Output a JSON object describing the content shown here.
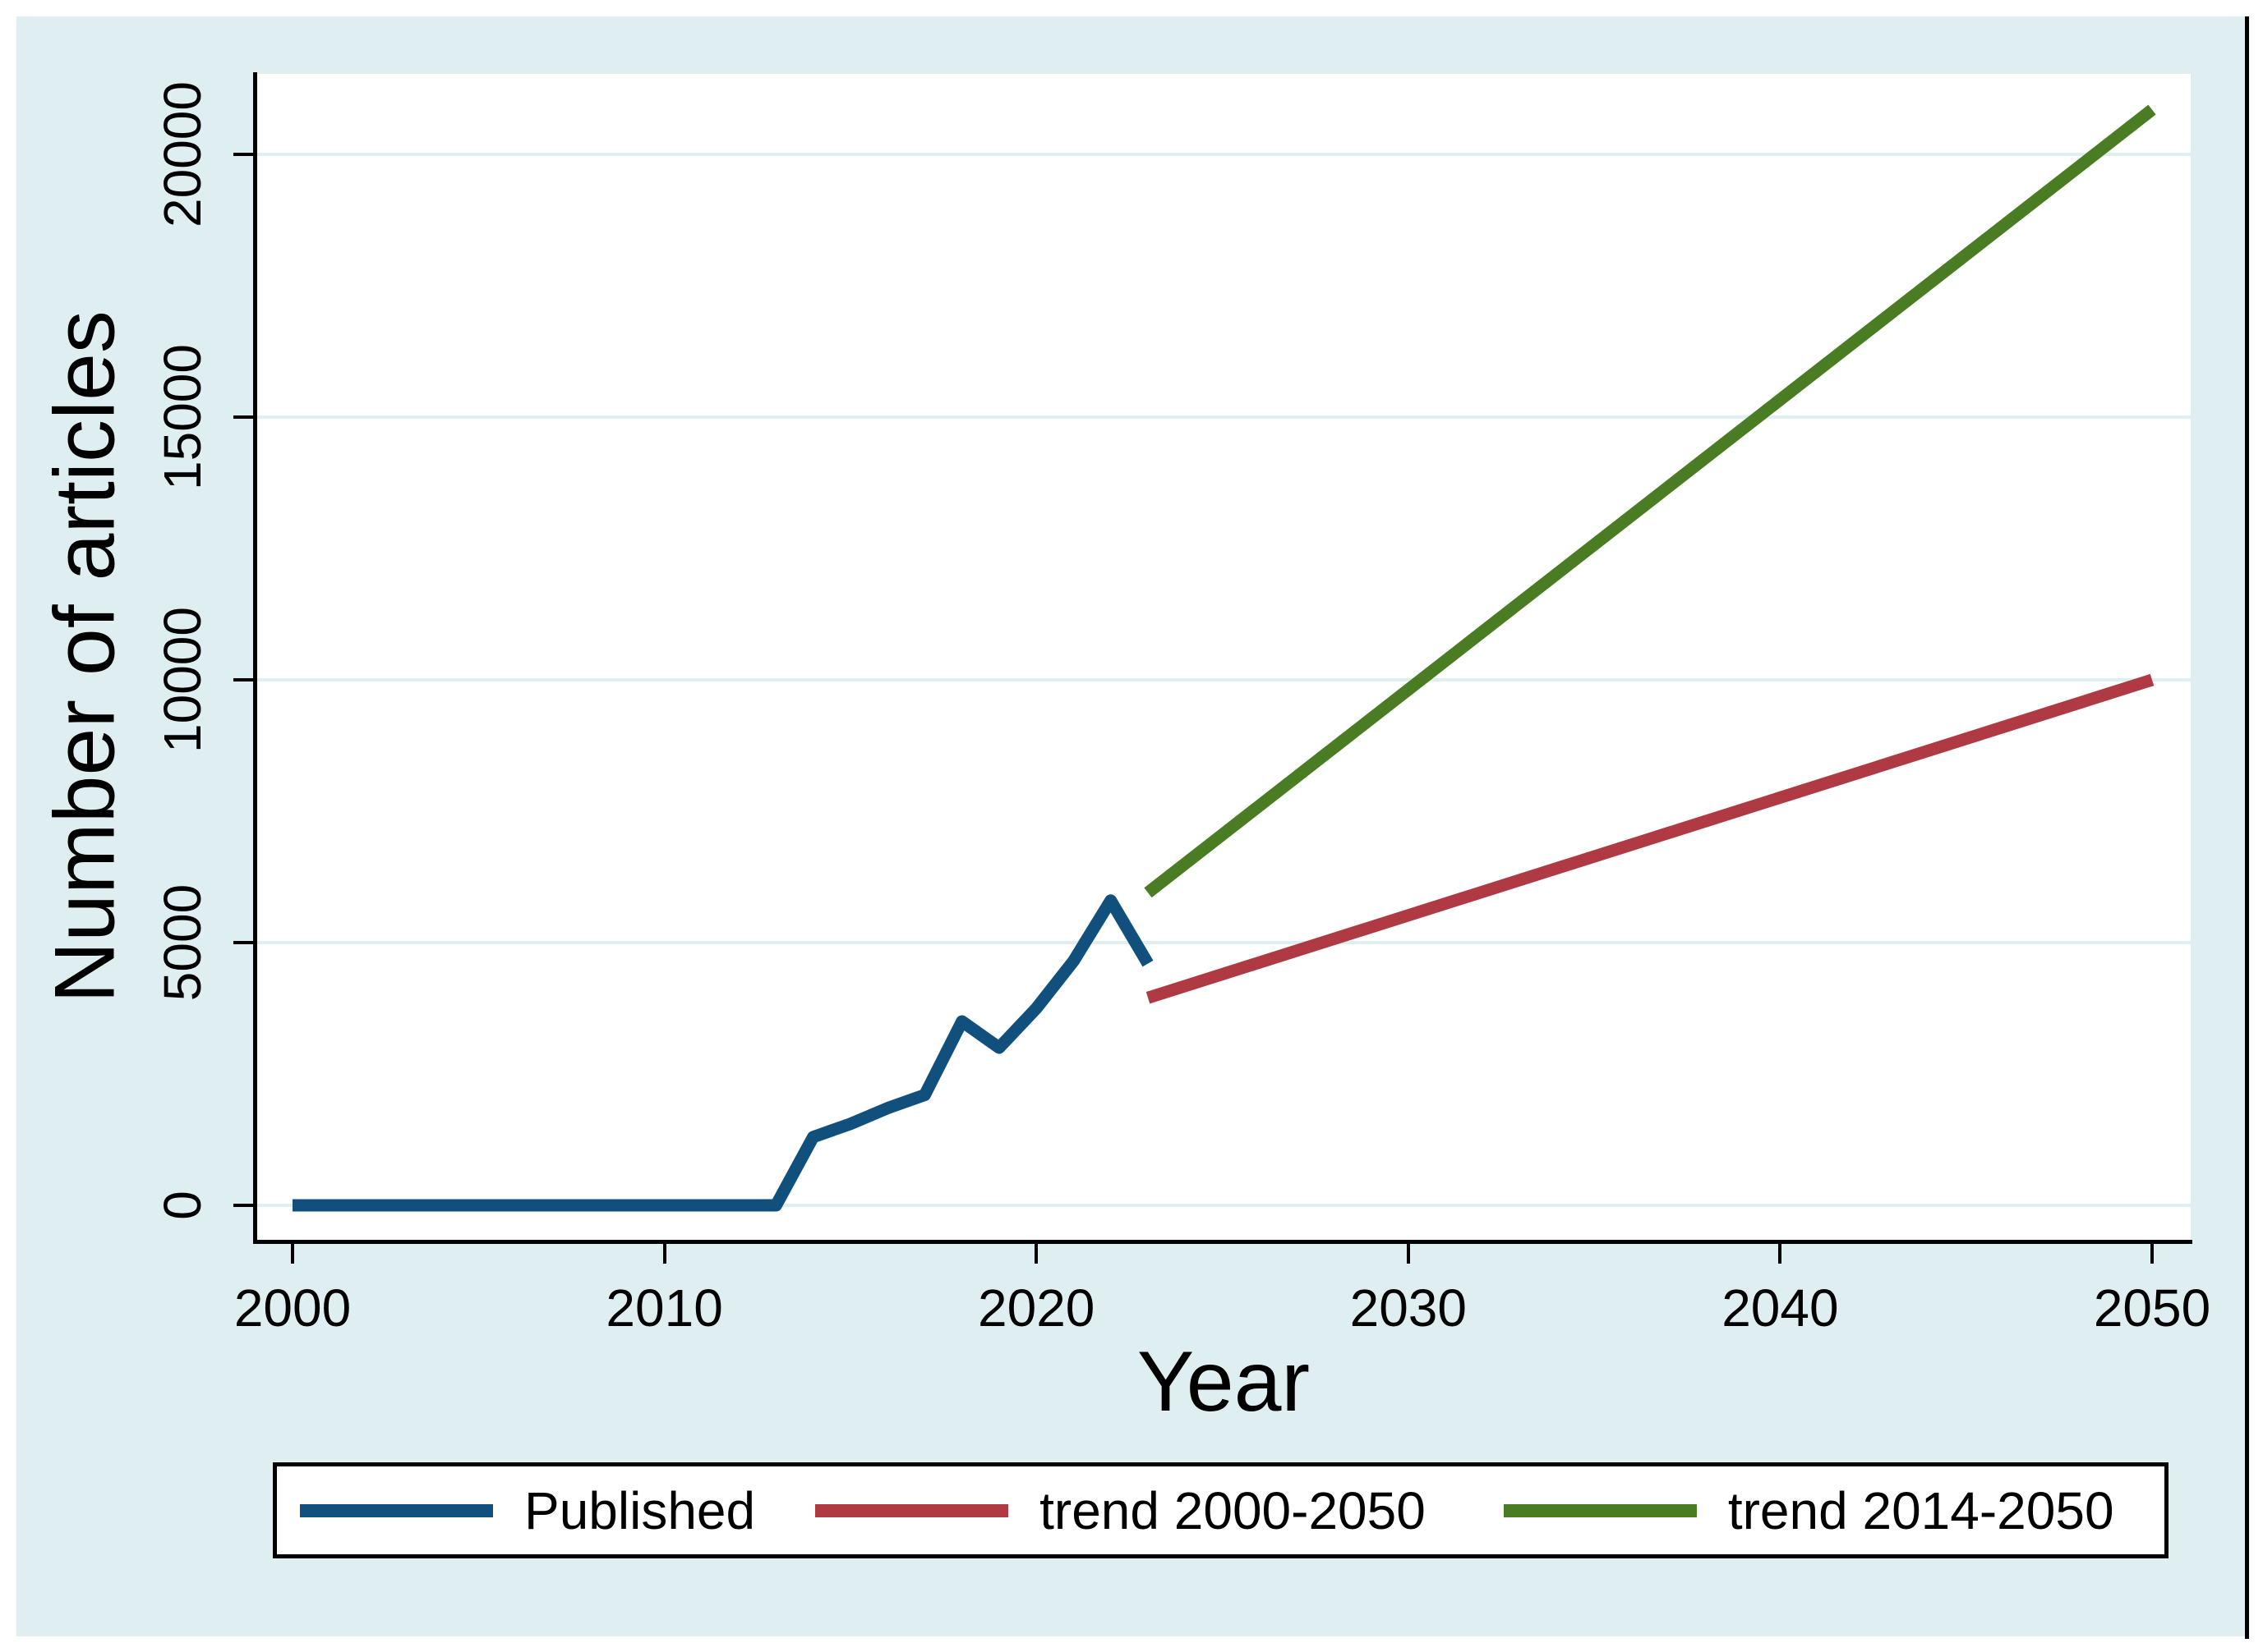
{
  "figure": {
    "background_color": "#dfeef0",
    "plot_background_color": "#ffffff",
    "x_axis": {
      "title": "Year",
      "tick_labels": [
        "2000",
        "2010",
        "2020",
        "2030",
        "2040",
        "2050"
      ]
    },
    "y_axis": {
      "title": "Number of articles",
      "tick_labels": [
        "0",
        "5000",
        "10000",
        "15000",
        "20000"
      ]
    },
    "legend": {
      "items": [
        {
          "label": "Published",
          "color": "#11507c"
        },
        {
          "label": "trend 2000-2050",
          "color": "#b03a44"
        },
        {
          "label": "trend 2014-2050",
          "color": "#4a7c23"
        }
      ]
    }
  },
  "chart_data": {
    "type": "line",
    "title": "",
    "xlabel": "Year",
    "ylabel": "Number of articles",
    "xlim": [
      2000,
      2050
    ],
    "ylim": [
      0,
      21500
    ],
    "x_ticks": [
      2000,
      2010,
      2020,
      2030,
      2040,
      2050
    ],
    "y_ticks": [
      0,
      5000,
      10000,
      15000,
      20000
    ],
    "grid": "horizontal",
    "legend_position": "bottom",
    "series": [
      {
        "name": "Published",
        "color": "#11507c",
        "x": [
          2000,
          2001,
          2002,
          2003,
          2004,
          2005,
          2006,
          2007,
          2008,
          2009,
          2010,
          2011,
          2012,
          2013,
          2014,
          2015,
          2016,
          2017,
          2018,
          2019,
          2020,
          2021,
          2022,
          2023
        ],
        "y": [
          0,
          0,
          0,
          0,
          0,
          0,
          0,
          0,
          0,
          0,
          0,
          0,
          0,
          0,
          1300,
          1550,
          1850,
          2100,
          3500,
          3000,
          3750,
          4650,
          5800,
          4600
        ]
      },
      {
        "name": "trend 2000-2050",
        "color": "#b03a44",
        "x": [
          2023,
          2050
        ],
        "y": [
          3950,
          10000
        ]
      },
      {
        "name": "trend 2014-2050",
        "color": "#4a7c23",
        "x": [
          2023,
          2050
        ],
        "y": [
          5950,
          20850
        ]
      }
    ]
  }
}
